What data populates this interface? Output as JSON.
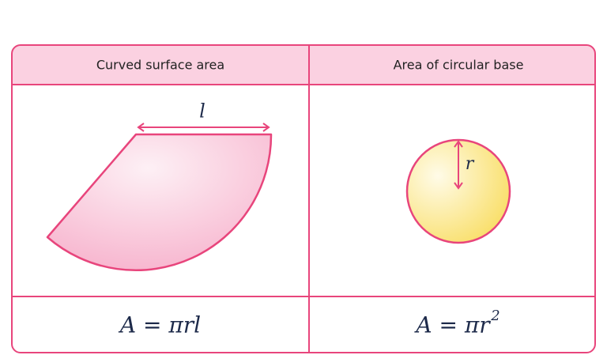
{
  "table": {
    "headers": [
      "Curved surface area",
      "Area of circular base"
    ],
    "cells": [
      {
        "label": "l",
        "formula": "A = πrl"
      },
      {
        "label": "r",
        "formula": "A = πr",
        "exponent": "2"
      }
    ]
  }
}
